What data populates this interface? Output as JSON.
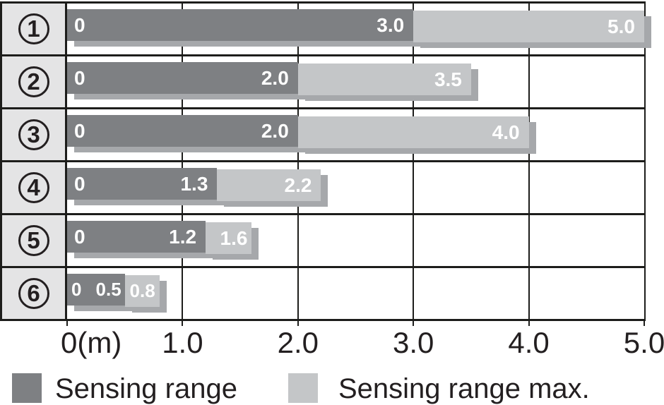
{
  "colors": {
    "sensing_range": "#7e8083",
    "sensing_range_max": "#c4c6c8",
    "bar_shadow": "#a6a8ab",
    "row_label_background": "#e4e4e5",
    "grid_border": "#1d1d1b",
    "text": "#231f20",
    "bar_text": "#ffffff"
  },
  "chart_data": {
    "type": "bar",
    "orientation": "horizontal",
    "title": "",
    "xlabel": "",
    "ylabel": "",
    "xlim": [
      0,
      5
    ],
    "grid": true,
    "unit": "m",
    "x_ticks": [
      "0(m)",
      "1.0",
      "2.0",
      "3.0",
      "4.0",
      "5.0"
    ],
    "categories": [
      "1",
      "2",
      "3",
      "4",
      "5",
      "6"
    ],
    "category_glyphs": [
      "①",
      "②",
      "③",
      "④",
      "⑤",
      "⑥"
    ],
    "series": [
      {
        "name": "Sensing range",
        "values": [
          3.0,
          2.0,
          2.0,
          1.3,
          1.2,
          0.5
        ]
      },
      {
        "name": "Sensing range max.",
        "values": [
          5.0,
          3.5,
          4.0,
          2.2,
          1.6,
          0.8
        ]
      }
    ],
    "rows": [
      {
        "number": "1",
        "zero_label": "0",
        "range": 3.0,
        "range_label": "3.0",
        "max": 5.0,
        "max_label": "5.0"
      },
      {
        "number": "2",
        "zero_label": "0",
        "range": 2.0,
        "range_label": "2.0",
        "max": 3.5,
        "max_label": "3.5"
      },
      {
        "number": "3",
        "zero_label": "0",
        "range": 2.0,
        "range_label": "2.0",
        "max": 4.0,
        "max_label": "4.0"
      },
      {
        "number": "4",
        "zero_label": "0",
        "range": 1.3,
        "range_label": "1.3",
        "max": 2.2,
        "max_label": "2.2"
      },
      {
        "number": "5",
        "zero_label": "0",
        "range": 1.2,
        "range_label": "1.2",
        "max": 1.6,
        "max_label": "1.6"
      },
      {
        "number": "6",
        "zero_label": "0",
        "range": 0.5,
        "range_label": "0.5",
        "max": 0.8,
        "max_label": "0.8"
      }
    ],
    "legend_position": "bottom",
    "legend": [
      {
        "label": "Sensing range"
      },
      {
        "label": "Sensing range max."
      }
    ]
  },
  "legend": {
    "sensing_range_label": "Sensing range",
    "sensing_range_max_label": "Sensing range max."
  }
}
